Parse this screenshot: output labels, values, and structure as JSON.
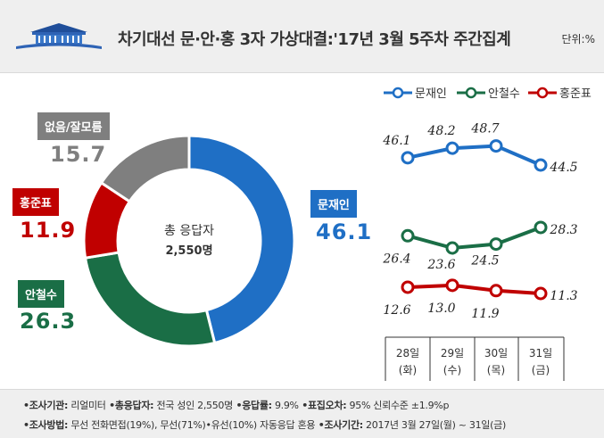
{
  "header": {
    "title": "차기대선 문·안·홍 3자 가상대결:'17년 3월 5주차 주간집계",
    "unit": "단위:%"
  },
  "colors": {
    "moon": "#1f6fc5",
    "ahn": "#1a6e46",
    "hong": "#c00000",
    "none": "#7f7f7f"
  },
  "donut": {
    "center_line1": "총 응답자",
    "center_line2": "2,550명",
    "slices": [
      {
        "name": "문재인",
        "value": 46.1,
        "value_text": "46.1"
      },
      {
        "name": "안철수",
        "value": 26.3,
        "value_text": "26.3"
      },
      {
        "name": "홍준표",
        "value": 11.9,
        "value_text": "11.9"
      },
      {
        "name": "없음/잘모름",
        "value": 15.7,
        "value_text": "15.7"
      }
    ]
  },
  "chart_data": {
    "type": "line",
    "categories": [
      "28일 (화)",
      "29일 (수)",
      "30일 (목)",
      "31일 (금)"
    ],
    "category_days": [
      "28일",
      "29일",
      "30일",
      "31일"
    ],
    "category_weekdays": [
      "(화)",
      "(수)",
      "(목)",
      "(금)"
    ],
    "legend": [
      "문재인",
      "안철수",
      "홍준표"
    ],
    "legend_position": "top",
    "series": [
      {
        "name": "문재인",
        "values": [
          46.1,
          48.2,
          48.7,
          44.5
        ],
        "labels": [
          "46.1",
          "48.2",
          "48.7",
          "44.5"
        ]
      },
      {
        "name": "안철수",
        "values": [
          26.4,
          23.6,
          24.5,
          28.3
        ],
        "labels": [
          "26.4",
          "23.6",
          "24.5",
          "28.3"
        ]
      },
      {
        "name": "홍준표",
        "values": [
          12.6,
          13.0,
          11.9,
          11.3
        ],
        "labels": [
          "12.6",
          "13.0",
          "11.9",
          "11.3"
        ]
      }
    ],
    "grid": false
  },
  "footer": {
    "line1": [
      {
        "k": "•조사기관:",
        "v": " 리얼미터"
      },
      {
        "k": " •총응답자:",
        "v": " 전국 성인 2,550명"
      },
      {
        "k": " •응답률:",
        "v": " 9.9%"
      },
      {
        "k": " •표집오차:",
        "v": " 95% 신뢰수준 ±1.9%p"
      }
    ],
    "line2": [
      {
        "k": "•조사방법:",
        "v": " 무선 전화면접(19%), 무선(71%)•유선(10%) 자동응답 혼용"
      },
      {
        "k": " •조사기간:",
        "v": " 2017년 3월 27일(월) ~ 31일(금)"
      }
    ]
  }
}
